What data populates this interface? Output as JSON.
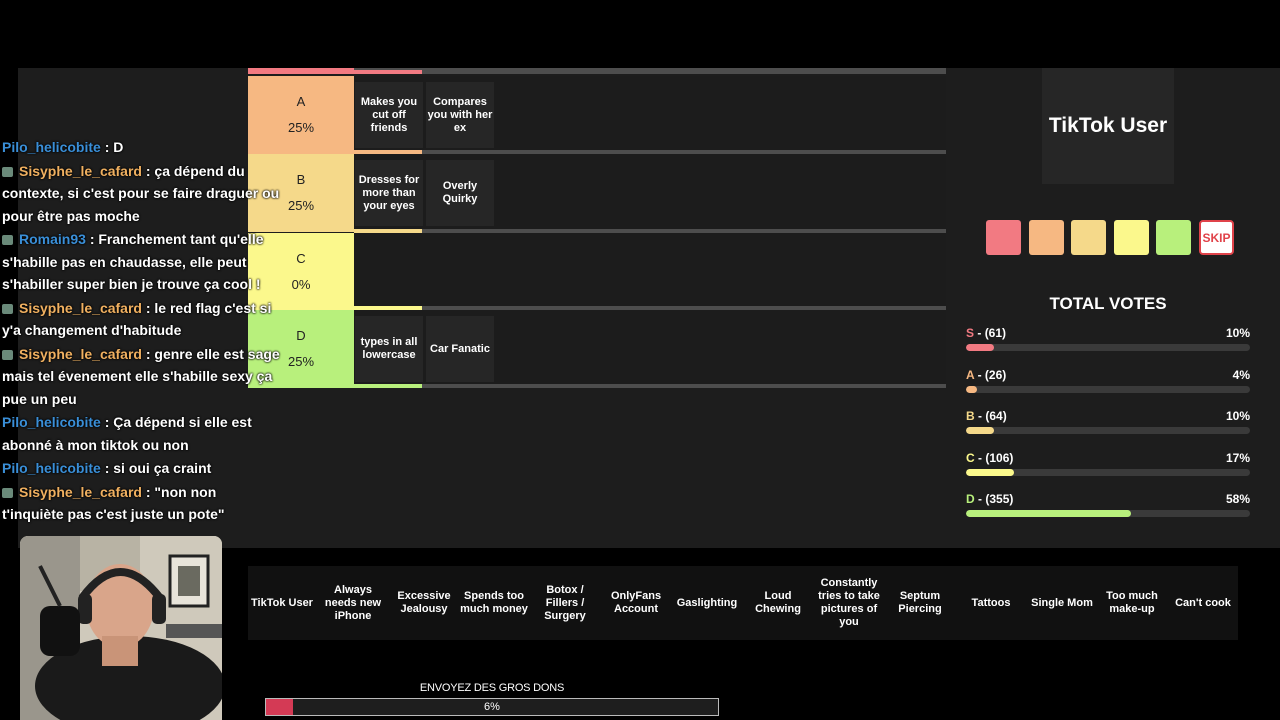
{
  "colors": {
    "S": "#f27a82",
    "A": "#f6b882",
    "B": "#f5d98a",
    "C": "#fbf88c",
    "D": "#b8f07c",
    "skip": "#e0434a",
    "donate": "#d43a55"
  },
  "tiers": [
    {
      "letter": "A",
      "percent": "25%",
      "items": [
        "Makes you cut off friends",
        "Compares you with her ex"
      ]
    },
    {
      "letter": "B",
      "percent": "25%",
      "items": [
        "Dresses for more than your eyes",
        "Overly Quirky"
      ]
    },
    {
      "letter": "C",
      "percent": "0%",
      "items": []
    },
    {
      "letter": "D",
      "percent": "25%",
      "items": [
        "types in all lowercase",
        "Car Fanatic"
      ]
    }
  ],
  "chat": [
    {
      "user": "Pilo_helicobite",
      "color": "blue",
      "badge": false,
      "text": ": D"
    },
    {
      "user": "Sisyphe_le_cafard",
      "color": "orange",
      "badge": true,
      "text": ": ça dépend du contexte, si c'est pour se faire draguer ou pour être pas moche"
    },
    {
      "user": "Romain93",
      "color": "blue",
      "badge": true,
      "text": ": Franchement tant qu'elle s'habille pas en chaudasse, elle peut s'habiller super bien je trouve ça cool !"
    },
    {
      "user": "Sisyphe_le_cafard",
      "color": "orange",
      "badge": true,
      "text": ": le red flag c'est si y'a changement d'habitude"
    },
    {
      "user": "Sisyphe_le_cafard",
      "color": "orange",
      "badge": true,
      "text": ": genre elle est sage mais tel évenement elle s'habille sexy ça pue un peu"
    },
    {
      "user": "Pilo_helicobite",
      "color": "blue",
      "badge": false,
      "text": ": Ça dépend si elle est abonné à mon tiktok ou non"
    },
    {
      "user": "Pilo_helicobite",
      "color": "blue",
      "badge": false,
      "text": ": si oui ça craint"
    },
    {
      "user": "Sisyphe_le_cafard",
      "color": "orange",
      "badge": true,
      "text": ": \"non non t'inquiète pas c'est juste un pote\""
    }
  ],
  "current_card": "TikTok User",
  "skip_label": "SKIP",
  "votes": {
    "title": "TOTAL VOTES",
    "rows": [
      {
        "letter": "S",
        "count": "- (61)",
        "percent": "10%",
        "fraction": 0.1
      },
      {
        "letter": "A",
        "count": "- (26)",
        "percent": "4%",
        "fraction": 0.04
      },
      {
        "letter": "B",
        "count": "- (64)",
        "percent": "10%",
        "fraction": 0.1
      },
      {
        "letter": "C",
        "count": "- (106)",
        "percent": "17%",
        "fraction": 0.17
      },
      {
        "letter": "D",
        "count": "- (355)",
        "percent": "58%",
        "fraction": 0.58
      }
    ]
  },
  "pool": [
    "TikTok User",
    "Always needs new iPhone",
    "Excessive Jealousy",
    "Spends too much money",
    "Botox / Fillers / Surgery",
    "OnlyFans Account",
    "Gaslighting",
    "Loud Chewing",
    "Constantly tries to take pictures of you",
    "Septum Piercing",
    "Tattoos",
    "Single Mom",
    "Too much make-up",
    "Can't cook"
  ],
  "donation": {
    "label": "ENVOYEZ DES GROS DONS",
    "percent_text": "6%",
    "fraction": 0.06
  }
}
